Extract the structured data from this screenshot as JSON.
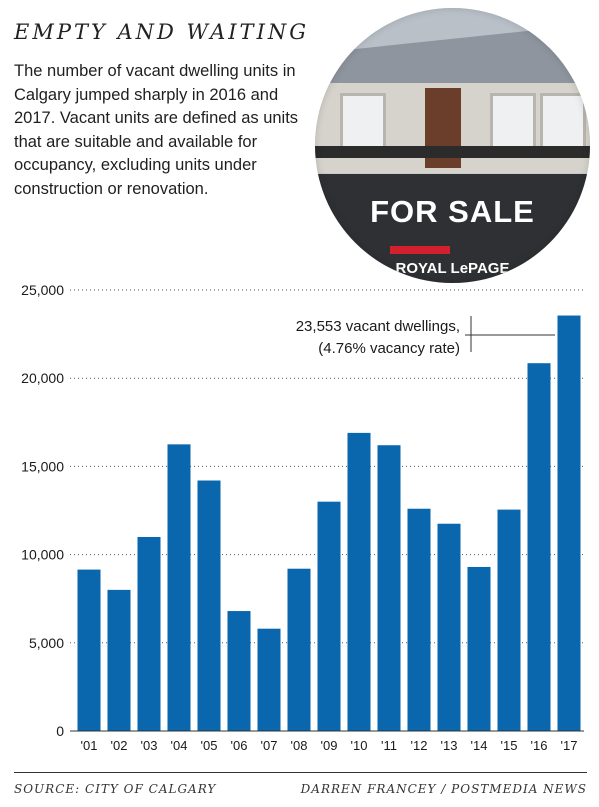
{
  "header": {
    "title": "EMPTY AND WAITING",
    "description": "The number of vacant dwelling units in Calgary jumped sharply in 2016 and 2017. Vacant units are defined as units that are suitable and available for occupancy, excluding units under construction or renovation."
  },
  "photo": {
    "sign_text": "FOR SALE",
    "brand_text": "ROYAL LePAGE"
  },
  "annotation": {
    "line1": "23,553 vacant dwellings,",
    "line2": "(4.76% vacancy rate)"
  },
  "footer": {
    "source": "SOURCE: CITY OF CALGARY",
    "credit": "DARREN FRANCEY / POSTMEDIA NEWS"
  },
  "colors": {
    "bar": "#0a66ad",
    "grid": "#555555",
    "text": "#1a1a1a"
  },
  "chart_data": {
    "type": "bar",
    "categories": [
      "'01",
      "'02",
      "'03",
      "'04",
      "'05",
      "'06",
      "'07",
      "'08",
      "'09",
      "'10",
      "'11",
      "'12",
      "'13",
      "'14",
      "'15",
      "'16",
      "'17"
    ],
    "values": [
      9150,
      8000,
      11000,
      16250,
      14200,
      6800,
      5800,
      9200,
      13000,
      16900,
      16200,
      12600,
      11750,
      9300,
      12550,
      20850,
      23553
    ],
    "yticks": [
      0,
      5000,
      10000,
      15000,
      20000,
      25000
    ],
    "ytick_labels": [
      "0",
      "5,000",
      "10,000",
      "15,000",
      "20,000",
      "25,000"
    ],
    "ylim": [
      0,
      25000
    ],
    "xlabel": "",
    "ylabel": "",
    "grid": true
  }
}
